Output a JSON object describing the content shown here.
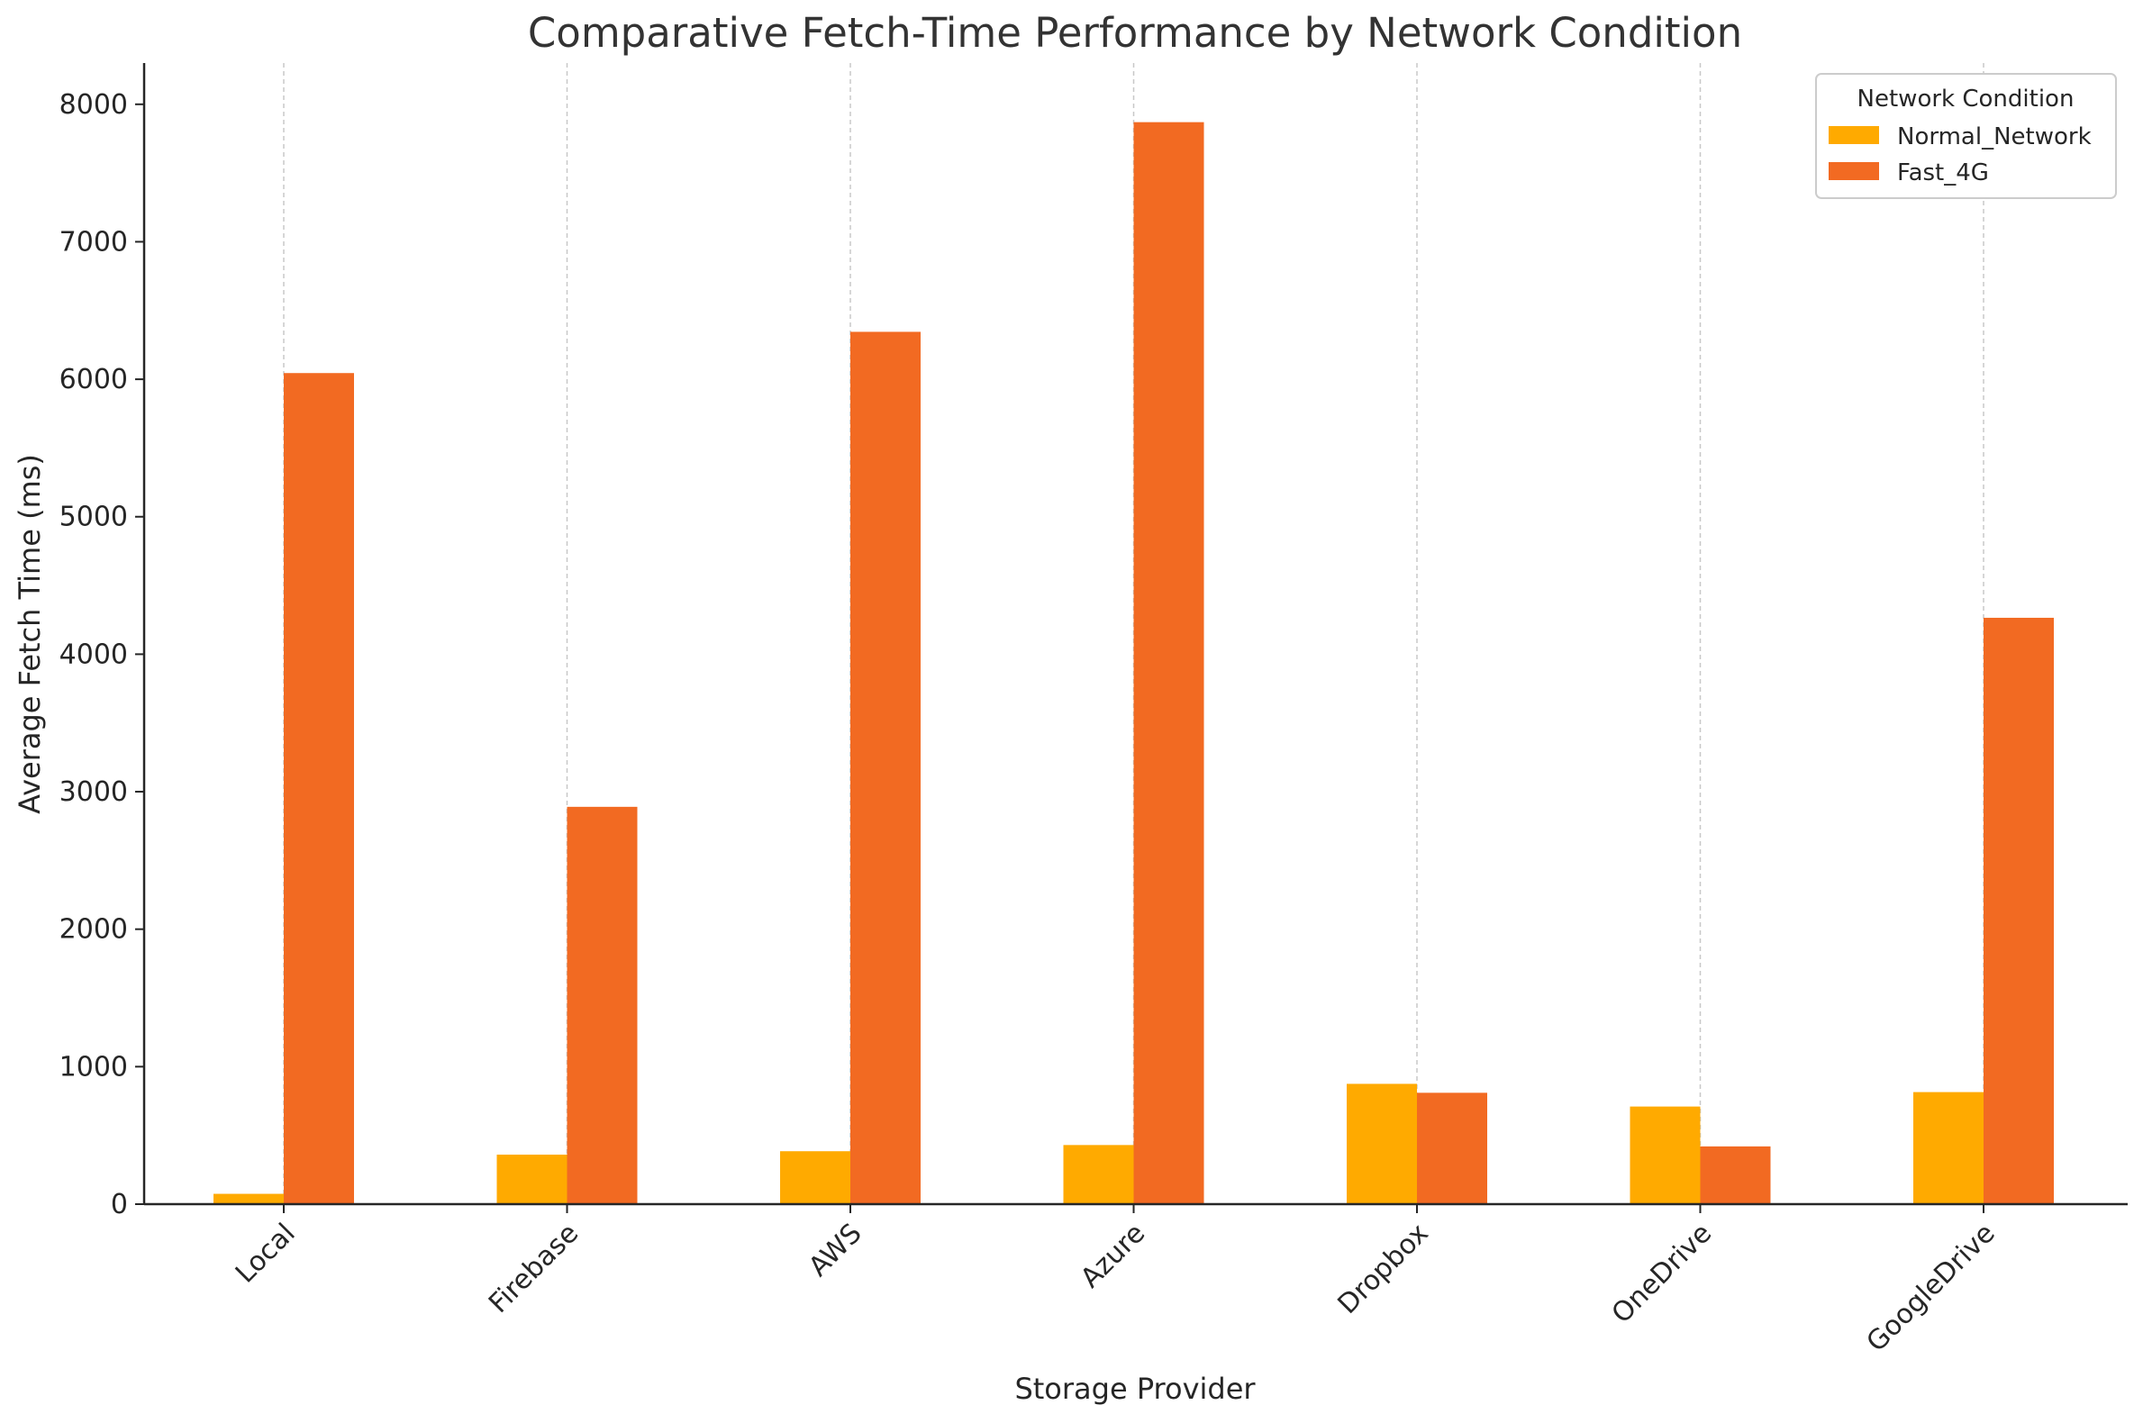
{
  "chart_data": {
    "type": "bar",
    "title": "Comparative Fetch-Time Performance by Network Condition",
    "xlabel": "Storage Provider",
    "ylabel": "Average Fetch Time (ms)",
    "categories": [
      "Local",
      "Firebase",
      "AWS",
      "Azure",
      "Dropbox",
      "OneDrive",
      "GoogleDrive"
    ],
    "series": [
      {
        "name": "Normal_Network",
        "color": "#FFAA00",
        "values": [
          75,
          360,
          385,
          430,
          875,
          710,
          815
        ]
      },
      {
        "name": "Fast_4G",
        "color": "#F26A22",
        "values": [
          6045,
          2890,
          6345,
          7870,
          810,
          420,
          4265
        ]
      }
    ],
    "ylim": [
      0,
      8300
    ],
    "yticks": [
      "0",
      "1000",
      "2000",
      "3000",
      "4000",
      "5000",
      "6000",
      "7000",
      "8000"
    ],
    "grid": "vertical dashed at category centers",
    "legend": {
      "title": "Network Condition",
      "placement": "top-right"
    }
  }
}
